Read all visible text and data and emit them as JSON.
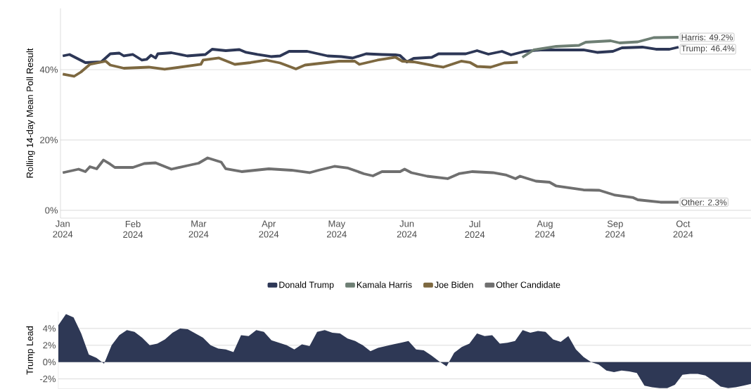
{
  "chart_data": [
    {
      "type": "line",
      "ylabel": "Rolling 14-day Mean Poll Result",
      "xlim": [
        "2023-12-31",
        "2024-10-31"
      ],
      "ylim": [
        -2.2,
        57.4
      ],
      "xticks": [
        {
          "value": "2024-01-01",
          "label": "Jan 2024"
        },
        {
          "value": "2024-02-01",
          "label": "Feb 2024"
        },
        {
          "value": "2024-03-01",
          "label": "Mar 2024"
        },
        {
          "value": "2024-04-01",
          "label": "Apr 2024"
        },
        {
          "value": "2024-05-01",
          "label": "May 2024"
        },
        {
          "value": "2024-06-01",
          "label": "Jun 2024"
        },
        {
          "value": "2024-07-01",
          "label": "Jul 2024"
        },
        {
          "value": "2024-08-01",
          "label": "Aug 2024"
        },
        {
          "value": "2024-09-01",
          "label": "Sep 2024"
        },
        {
          "value": "2024-10-01",
          "label": "Oct 2024"
        }
      ],
      "yticks": [
        {
          "value": 0,
          "label": "0%"
        },
        {
          "value": 20,
          "label": "20%"
        },
        {
          "value": 40,
          "label": "40%"
        }
      ],
      "grid": "y",
      "legend": "bottom",
      "marker": "none",
      "line_style": "solid",
      "series": [
        {
          "name": "Donald Trump",
          "color": "#2d3756",
          "x": [
            "2024-01-01",
            "2024-01-04",
            "2024-01-11",
            "2024-01-18",
            "2024-01-22",
            "2024-01-26",
            "2024-01-28",
            "2024-02-01",
            "2024-02-05",
            "2024-02-07",
            "2024-02-09",
            "2024-02-11",
            "2024-02-12",
            "2024-02-18",
            "2024-02-25",
            "2024-03-04",
            "2024-03-07",
            "2024-03-13",
            "2024-03-19",
            "2024-03-22",
            "2024-03-27",
            "2024-04-02",
            "2024-04-06",
            "2024-04-10",
            "2024-04-18",
            "2024-04-27",
            "2024-05-03",
            "2024-05-08",
            "2024-05-14",
            "2024-05-21",
            "2024-05-27",
            "2024-05-29",
            "2024-06-01",
            "2024-06-04",
            "2024-06-12",
            "2024-06-15",
            "2024-06-27",
            "2024-07-02",
            "2024-07-07",
            "2024-07-13",
            "2024-07-17",
            "2024-07-23",
            "2024-07-30",
            "2024-08-08",
            "2024-08-18",
            "2024-08-24",
            "2024-08-31",
            "2024-09-04",
            "2024-09-13",
            "2024-09-19",
            "2024-09-25",
            "2024-09-29"
          ],
          "values": [
            43.9,
            44.3,
            42.0,
            42.2,
            44.5,
            44.7,
            43.9,
            44.3,
            42.7,
            42.9,
            44.1,
            43.3,
            44.5,
            44.8,
            43.9,
            44.3,
            45.8,
            45.4,
            45.7,
            44.9,
            44.3,
            43.7,
            43.9,
            45.2,
            45.2,
            43.9,
            43.7,
            43.3,
            44.5,
            44.3,
            44.2,
            44.0,
            42.2,
            43.2,
            43.5,
            44.5,
            44.5,
            45.4,
            44.4,
            45.2,
            44.2,
            45.2,
            45.6,
            45.6,
            45.6,
            44.9,
            45.2,
            46.2,
            46.4,
            45.8,
            45.8,
            46.4
          ]
        },
        {
          "name": "Kamala Harris",
          "color": "#6e7f74",
          "x": [
            "2024-07-22",
            "2024-07-27",
            "2024-08-06",
            "2024-08-16",
            "2024-08-19",
            "2024-08-30",
            "2024-09-03",
            "2024-09-11",
            "2024-09-18",
            "2024-09-29"
          ],
          "values": [
            43.5,
            45.6,
            46.6,
            46.9,
            47.8,
            48.2,
            47.6,
            47.9,
            49.1,
            49.2
          ]
        },
        {
          "name": "Joe Biden",
          "color": "#7d6840",
          "x": [
            "2024-01-01",
            "2024-01-06",
            "2024-01-09",
            "2024-01-13",
            "2024-01-20",
            "2024-01-22",
            "2024-01-28",
            "2024-02-08",
            "2024-02-15",
            "2024-03-02",
            "2024-03-03",
            "2024-03-10",
            "2024-03-17",
            "2024-03-24",
            "2024-03-31",
            "2024-04-06",
            "2024-04-13",
            "2024-04-17",
            "2024-05-02",
            "2024-05-09",
            "2024-05-11",
            "2024-05-19",
            "2024-05-27",
            "2024-05-30",
            "2024-06-04",
            "2024-06-13",
            "2024-06-17",
            "2024-06-25",
            "2024-06-29",
            "2024-07-02",
            "2024-07-08",
            "2024-07-14",
            "2024-07-20"
          ],
          "values": [
            38.7,
            38.1,
            39.3,
            41.5,
            42.4,
            41.3,
            40.4,
            40.7,
            40.1,
            41.5,
            42.7,
            43.3,
            41.5,
            42.0,
            42.7,
            41.9,
            40.2,
            41.3,
            42.4,
            42.4,
            41.5,
            42.7,
            43.5,
            42.4,
            42.2,
            41.1,
            40.7,
            42.4,
            42.0,
            40.9,
            40.7,
            41.9,
            42.1
          ]
        },
        {
          "name": "Other Candidate",
          "color": "#6f6f6f",
          "x": [
            "2024-01-01",
            "2024-01-08",
            "2024-01-11",
            "2024-01-13",
            "2024-01-16",
            "2024-01-19",
            "2024-01-22",
            "2024-01-24",
            "2024-02-01",
            "2024-02-06",
            "2024-02-11",
            "2024-02-18",
            "2024-02-25",
            "2024-03-01",
            "2024-03-05",
            "2024-03-11",
            "2024-03-13",
            "2024-03-20",
            "2024-04-01",
            "2024-04-11",
            "2024-04-19",
            "2024-04-23",
            "2024-04-30",
            "2024-05-06",
            "2024-05-13",
            "2024-05-17",
            "2024-05-21",
            "2024-05-29",
            "2024-05-31",
            "2024-06-03",
            "2024-06-10",
            "2024-06-19",
            "2024-06-24",
            "2024-06-30",
            "2024-07-09",
            "2024-07-15",
            "2024-07-19",
            "2024-07-21",
            "2024-07-28",
            "2024-08-03",
            "2024-08-06",
            "2024-08-18",
            "2024-08-25",
            "2024-09-01",
            "2024-09-09",
            "2024-09-11",
            "2024-09-21",
            "2024-09-29"
          ],
          "values": [
            10.7,
            11.7,
            11.0,
            12.4,
            11.8,
            14.3,
            13.1,
            12.2,
            12.2,
            13.3,
            13.5,
            11.7,
            12.7,
            13.4,
            14.9,
            13.7,
            11.8,
            11.0,
            11.8,
            11.4,
            10.7,
            11.4,
            12.5,
            12.0,
            10.4,
            9.8,
            11.0,
            11.0,
            11.7,
            10.7,
            9.7,
            9.0,
            10.4,
            11.0,
            10.7,
            10.0,
            9.0,
            9.7,
            8.3,
            8.0,
            6.9,
            5.8,
            5.7,
            4.3,
            3.6,
            3.0,
            2.3,
            2.3
          ]
        }
      ],
      "annotations": [
        {
          "text": "Harris: 49.2%",
          "x": "2024-09-29",
          "y": 49.2
        },
        {
          "text": "Trump: 46.4%",
          "x": "2024-09-29",
          "y": 46.4
        },
        {
          "text": "Other:  2.3%",
          "x": "2024-09-29",
          "y": 2.3
        }
      ]
    },
    {
      "type": "area",
      "ylabel": "Trump Lead",
      "categories": [
        null,
        null,
        null,
        null,
        null,
        null,
        null,
        null,
        null,
        null,
        null,
        null,
        null,
        null,
        null,
        null,
        null,
        null,
        null,
        null,
        null,
        null,
        null,
        null,
        null,
        null,
        null,
        null,
        null,
        null,
        null,
        null,
        null,
        null,
        null,
        null,
        null,
        null,
        null,
        null,
        null,
        null,
        null,
        null,
        null,
        null,
        null,
        null,
        null,
        null,
        null,
        null,
        null,
        null,
        null,
        null,
        null,
        null,
        null,
        null,
        null,
        null,
        null,
        null,
        null,
        null,
        null,
        null,
        null,
        null,
        null,
        null,
        null,
        null,
        null,
        null,
        null,
        null,
        null,
        null,
        null,
        null,
        null,
        null,
        null,
        null,
        null,
        null,
        null,
        null,
        null,
        null
      ],
      "ylim": [
        -3.2,
        6
      ],
      "tick_labels": "y",
      "grid": "y",
      "yticks": [
        {
          "value": -2,
          "label": "-2%"
        },
        {
          "value": 0,
          "label": "0%"
        },
        {
          "value": 2,
          "label": "2%"
        },
        {
          "value": 4,
          "label": "4%"
        }
      ],
      "series": [
        {
          "color": "#2e3855",
          "values": [
            4.4,
            5.7,
            5.3,
            3.4,
            0.9,
            0.5,
            -0.2,
            2.0,
            3.2,
            3.8,
            3.6,
            2.9,
            2.0,
            2.2,
            2.7,
            3.5,
            4.0,
            3.9,
            3.4,
            2.9,
            2.0,
            1.6,
            1.5,
            1.2,
            3.2,
            3.1,
            3.8,
            3.6,
            2.6,
            2.3,
            2.0,
            1.5,
            2.1,
            1.9,
            3.6,
            3.8,
            3.5,
            3.4,
            2.8,
            2.5,
            2.0,
            1.3,
            1.7,
            1.9,
            2.1,
            2.3,
            2.5,
            1.5,
            1.4,
            0.8,
            0.1,
            -0.5,
            1.1,
            1.8,
            2.2,
            3.4,
            3.1,
            3.2,
            2.2,
            2.3,
            2.5,
            3.8,
            3.5,
            3.7,
            3.6,
            2.7,
            2.4,
            3.1,
            1.5,
            0.6,
            0.0,
            -0.3,
            -1.0,
            -1.2,
            -1.0,
            -1.1,
            -1.3,
            -2.8,
            -3.0,
            -3.1,
            -3.1,
            -2.7,
            -1.5,
            -1.4,
            -1.4,
            -1.6,
            -2.2,
            -2.9,
            -3.1,
            -3.0,
            -2.8,
            -2.6
          ]
        }
      ]
    }
  ]
}
